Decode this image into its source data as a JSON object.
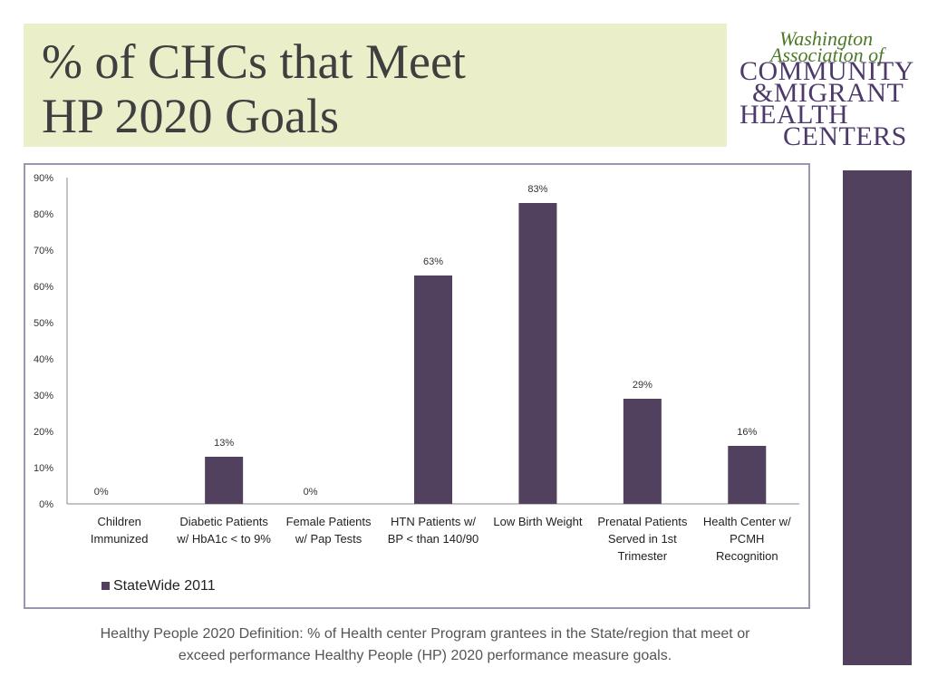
{
  "slide": {
    "title_line1": "% of CHCs that Meet",
    "title_line2": "HP 2020 Goals",
    "footer_line1": "Healthy People 2020 Definition:  % of Health center Program grantees in the State/region that meet or",
    "footer_line2": "exceed performance Healthy People (HP) 2020 performance measure goals."
  },
  "logo": {
    "line1": "Washington",
    "line2": "Association of",
    "line3": "COMMUNITY",
    "line4": "&MIGRANT",
    "line5": "HEALTH",
    "line6": "CENTERS"
  },
  "colors": {
    "bar": "#51405e",
    "title_bg": "#eaeec9",
    "frame": "#9c95ad",
    "logo_green": "#4d7a2a",
    "logo_purple": "#4e3a6a"
  },
  "chart_data": {
    "type": "bar",
    "title": "",
    "xlabel": "",
    "ylabel": "",
    "categories": [
      [
        "Children",
        "Immunized"
      ],
      [
        "Diabetic Patients",
        "w/ HbA1c < to 9%"
      ],
      [
        "Female Patients",
        "w/ Pap Tests"
      ],
      [
        "HTN Patients w/",
        "BP < than 140/90"
      ],
      [
        "Low Birth Weight"
      ],
      [
        "Prenatal Patients",
        "Served in 1st",
        "Trimester"
      ],
      [
        "Health Center w/",
        "PCMH",
        "Recognition"
      ]
    ],
    "series": [
      {
        "name": "StateWide 2011",
        "values": [
          0,
          13,
          0,
          63,
          83,
          29,
          16
        ]
      }
    ],
    "data_labels": [
      "0%",
      "13%",
      "0%",
      "63%",
      "83%",
      "29%",
      "16%"
    ],
    "ylim": [
      0,
      90
    ],
    "yticks": [
      "0%",
      "10%",
      "20%",
      "30%",
      "40%",
      "50%",
      "60%",
      "70%",
      "80%",
      "90%"
    ],
    "grid": false,
    "legend": "bottom-left"
  }
}
